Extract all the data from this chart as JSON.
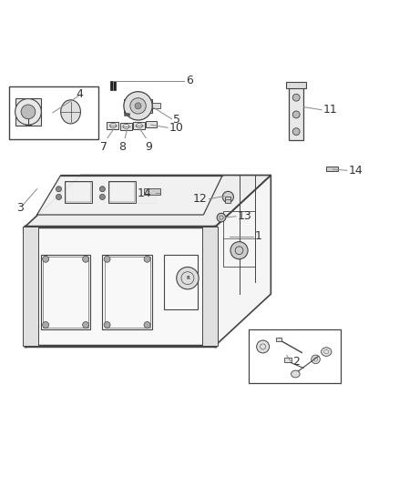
{
  "background_color": "#ffffff",
  "line_color": "#444444",
  "label_color": "#333333",
  "label_fontsize": 9,
  "leader_line_color": "#888888"
}
